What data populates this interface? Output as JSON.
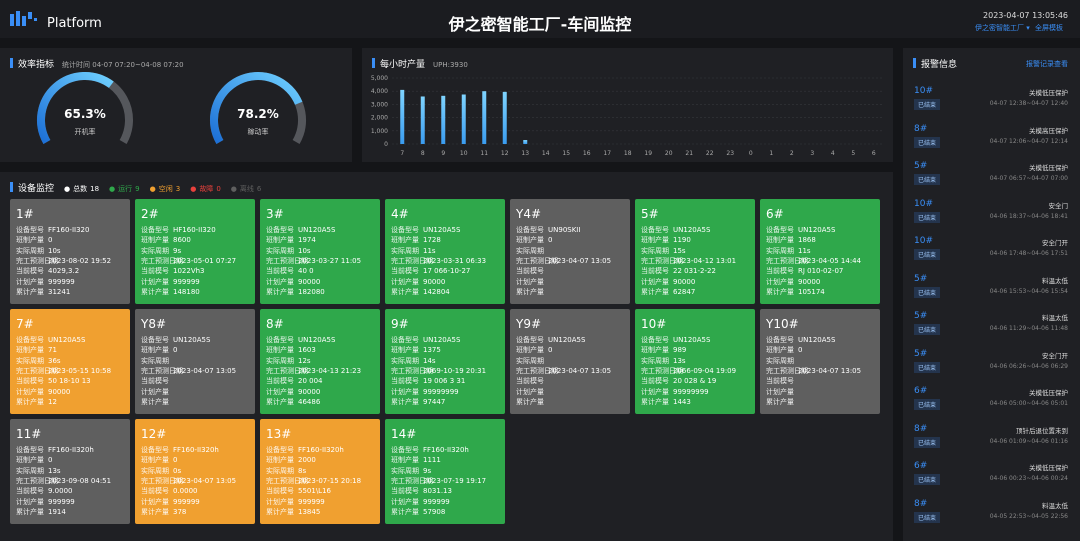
{
  "header": {
    "brand": "Platform",
    "title": "伊之密智能工厂-车间监控",
    "datetime": "2023-04-07 13:05:46",
    "factory": "伊之密智能工厂",
    "template": "全屏模板"
  },
  "chart_data": [
    {
      "type": "gauge",
      "title": "效率指标",
      "subtitle": "统计时间 04-07 07:20~04-08 07:20",
      "ylim": [
        0,
        100
      ],
      "gauges": [
        {
          "label": "开机率",
          "value": 65.3,
          "value_label": "65.3%"
        },
        {
          "label": "稼动率",
          "value": 78.2,
          "value_label": "78.2%"
        }
      ]
    },
    {
      "type": "bar",
      "title": "每小时产量",
      "subtitle": "UPH:3930",
      "color": "#3a9cf0",
      "categories": [
        "7",
        "8",
        "9",
        "10",
        "11",
        "12",
        "13",
        "14",
        "15",
        "16",
        "17",
        "18",
        "19",
        "20",
        "21",
        "22",
        "23",
        "0",
        "1",
        "2",
        "3",
        "4",
        "5",
        "6"
      ],
      "values": [
        4100,
        3600,
        3650,
        3750,
        4000,
        3950,
        300,
        0,
        0,
        0,
        0,
        0,
        0,
        0,
        0,
        0,
        0,
        0,
        0,
        0,
        0,
        0,
        0,
        0
      ],
      "ylim": [
        0,
        5000
      ],
      "yticks": [
        0,
        {
          "value": 1000,
          "label": "1,000"
        },
        {
          "value": 2000,
          "label": "2,000"
        },
        {
          "value": 3000,
          "label": "3,000"
        },
        {
          "value": 4000,
          "label": "4,000"
        },
        {
          "value": 5000,
          "label": "5,000"
        }
      ],
      "grid": true
    }
  ],
  "devices": {
    "title": "设备监控",
    "legend": [
      {
        "label": "总数",
        "count": 18,
        "color": "#ffffff"
      },
      {
        "label": "运行",
        "count": 9,
        "color": "#2fa84b"
      },
      {
        "label": "空闲",
        "count": 3,
        "color": "#f0a030"
      },
      {
        "label": "故障",
        "count": 0,
        "color": "#e8413c"
      },
      {
        "label": "离线",
        "count": 6,
        "color": "#5f5f5f"
      }
    ],
    "field_labels": [
      "设备型号",
      "班制产量",
      "实际周期",
      "完工预测日期",
      "当前模号",
      "计划产量",
      "累计产量"
    ],
    "cards": [
      {
        "name": "1#",
        "status": 4,
        "values": [
          "FF160-II320",
          0,
          "10s",
          "2023-08-02 19:52",
          "4029,3.2",
          999999,
          31241
        ]
      },
      {
        "name": "2#",
        "status": 1,
        "values": [
          "HF160-II320",
          8600,
          "9s",
          "2023-05-01 07:27",
          "1022Vh3",
          999999,
          148180
        ]
      },
      {
        "name": "3#",
        "status": 1,
        "values": [
          "UN120A5S",
          1974,
          "10s",
          "2023-03-27 11:05",
          "40 0",
          90000,
          182080
        ]
      },
      {
        "name": "4#",
        "status": 1,
        "values": [
          "UN120A5S",
          1728,
          "11s",
          "2023-03-31 06:33",
          "17 066-10-27",
          90000,
          142804
        ]
      },
      {
        "name": "Y4#",
        "status": 4,
        "values": [
          "UN90SKII",
          0,
          null,
          "2023-04-07 13:05",
          null,
          null,
          null
        ]
      },
      {
        "name": "5#",
        "status": 1,
        "values": [
          "UN120A5S",
          1190,
          "15s",
          "2023-04-12 13:01",
          "22 031-2-22",
          90000,
          62847
        ]
      },
      {
        "name": "6#",
        "status": 1,
        "values": [
          "UN120A5S",
          1868,
          "11s",
          "2023-04-05 14:44",
          "RJ 010-02-07",
          90000,
          105174
        ]
      },
      {
        "name": "7#",
        "status": 2,
        "values": [
          "UN120A5S",
          71,
          "36s",
          "2023-05-15 10:58",
          "50 18-10 13",
          90000,
          12
        ]
      },
      {
        "name": "Y8#",
        "status": 4,
        "values": [
          "UN120A5S",
          0,
          null,
          "2023-04-07 13:05",
          null,
          null,
          null
        ]
      },
      {
        "name": "8#",
        "status": 1,
        "values": [
          "UN120A5S",
          1603,
          "12s",
          "2023-04-13 21:23",
          "20 004",
          90000,
          46486
        ]
      },
      {
        "name": "9#",
        "status": 1,
        "values": [
          "UN120A5S",
          1375,
          "14s",
          "2069-10-19 20:31",
          "19 006 3 31",
          99999999,
          97447
        ]
      },
      {
        "name": "Y9#",
        "status": 4,
        "values": [
          "UN120A5S",
          0,
          null,
          "2023-04-07 13:05",
          null,
          null,
          null
        ]
      },
      {
        "name": "10#",
        "status": 1,
        "values": [
          "UN120A5S",
          989,
          "13s",
          "2066-09-04 19:09",
          "20 028 & 19",
          99999999,
          1443
        ]
      },
      {
        "name": "Y10#",
        "status": 4,
        "values": [
          "UN120A5S",
          0,
          null,
          "2023-04-07 13:05",
          null,
          null,
          null
        ]
      },
      {
        "name": "11#",
        "status": 4,
        "values": [
          "FF160-II320h",
          0,
          "13s",
          "2023-09-08 04:51",
          "9.0000",
          999999,
          1914
        ]
      },
      {
        "name": "12#",
        "status": 2,
        "values": [
          "FF160-II320h",
          0,
          "0s",
          "2023-04-07 13:05",
          "0.0000",
          999999,
          378
        ]
      },
      {
        "name": "13#",
        "status": 2,
        "values": [
          "FF160-II320h",
          2000,
          "8s",
          "2023-07-15 20:18",
          "5501\\L16",
          999999,
          13845
        ]
      },
      {
        "name": "14#",
        "status": 1,
        "values": [
          "FF160-II320h",
          1111,
          "9s",
          "2023-07-19 19:17",
          "8031.13",
          999999,
          57908
        ]
      }
    ]
  },
  "alarms": {
    "title": "报警信息",
    "link": "报警记录查看",
    "items": [
      {
        "machine": "10#",
        "status": "已结束",
        "message": "关模低压保护",
        "time": "04-07 12:38~04-07 12:40"
      },
      {
        "machine": "8#",
        "status": "已结束",
        "message": "关模高压保护",
        "time": "04-07 12:06~04-07 12:14"
      },
      {
        "machine": "5#",
        "status": "已结束",
        "message": "关模低压保护",
        "time": "04-07 06:57~04-07 07:00"
      },
      {
        "machine": "10#",
        "status": "已结束",
        "message": "安全门",
        "time": "04-06 18:37~04-06 18:41"
      },
      {
        "machine": "10#",
        "status": "已结束",
        "message": "安全门开",
        "time": "04-06 17:48~04-06 17:51"
      },
      {
        "machine": "5#",
        "status": "已结束",
        "message": "料温太低",
        "time": "04-06 15:53~04-06 15:54"
      },
      {
        "machine": "5#",
        "status": "已结束",
        "message": "料温太低",
        "time": "04-06 11:29~04-06 11:48"
      },
      {
        "machine": "5#",
        "status": "已结束",
        "message": "安全门开",
        "time": "04-06 06:26~04-06 06:29"
      },
      {
        "machine": "6#",
        "status": "已结束",
        "message": "关模低压保护",
        "time": "04-06 05:00~04-06 05:01"
      },
      {
        "machine": "8#",
        "status": "已结束",
        "message": "顶针后退位置未到",
        "time": "04-06 01:09~04-06 01:16"
      },
      {
        "machine": "6#",
        "status": "已结束",
        "message": "关模低压保护",
        "time": "04-06 00:23~04-06 00:24"
      },
      {
        "machine": "8#",
        "status": "已结束",
        "message": "料温太低",
        "time": "04-05 22:53~04-05 22:56"
      }
    ]
  }
}
